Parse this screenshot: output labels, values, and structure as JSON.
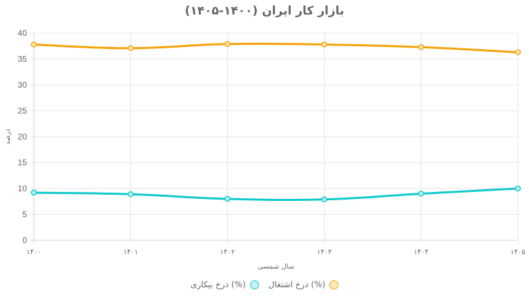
{
  "title": "بازار کار ایران (۱۴۰۰-۱۴۰۵)",
  "colors": {
    "employment": "#f5a30a",
    "unemployment": "#11c9cc",
    "grid": "#e5e5e5",
    "text": "#666666"
  },
  "legend": [
    {
      "label": "(%) درخ اشتغال",
      "color": "#f5a30a",
      "fill": "#fde9c0"
    },
    {
      "label": "(%) درخ بیکاری",
      "color": "#11c9cc",
      "fill": "#c6f2f3"
    }
  ],
  "chart_data": {
    "type": "line",
    "title": "بازار کار ایران (۱۴۰۰-۱۴۰۵)",
    "xlabel": "سال شمسی",
    "ylabel": "درصد",
    "categories": [
      "۱۴۰۰",
      "۱۴۰۱",
      "۱۴۰۲",
      "۱۴۰۳",
      "۱۴۰۴",
      "۱۴۰۵"
    ],
    "series": [
      {
        "name": "(%) درخ اشتغال",
        "values": [
          37.8,
          37.1,
          37.9,
          37.8,
          37.3,
          36.3
        ],
        "color": "#f5a30a"
      },
      {
        "name": "(%) درخ بیکاری",
        "values": [
          9.2,
          8.9,
          8.0,
          7.9,
          9.0,
          10.0
        ],
        "color": "#11c9cc"
      }
    ],
    "ylim": [
      0,
      40
    ],
    "yticks": [
      0,
      5,
      10,
      15,
      20,
      25,
      30,
      35,
      40
    ],
    "grid": true,
    "legend_position": "bottom"
  }
}
